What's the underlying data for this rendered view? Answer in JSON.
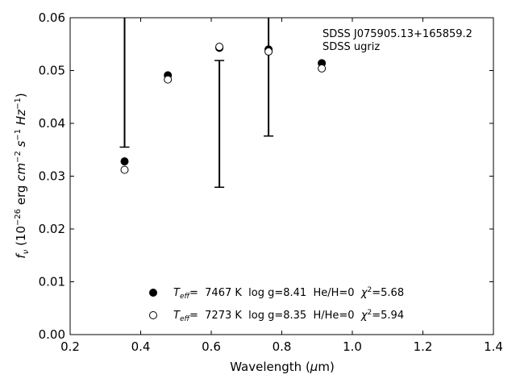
{
  "chart_data": {
    "type": "scatter",
    "xlabel": "Wavelength (μm)",
    "ylabel": "f_ν (10^-26 erg cm^-2 s^-1 Hz^-1)",
    "xlim": [
      0.2,
      1.4
    ],
    "ylim": [
      0.0,
      0.06
    ],
    "x_ticks": [
      0.2,
      0.4,
      0.6,
      0.8,
      1.0,
      1.2,
      1.4
    ],
    "x_tick_labels": [
      "0.2",
      "0.4",
      "0.6",
      "0.8",
      "1.0",
      "1.2",
      "1.4"
    ],
    "y_ticks": [
      0.0,
      0.01,
      0.02,
      0.03,
      0.04,
      0.05,
      0.06
    ],
    "y_tick_labels": [
      "0.00",
      "0.01",
      "0.02",
      "0.03",
      "0.04",
      "0.05",
      "0.06"
    ],
    "grid": false,
    "annotations": [
      "SDSS J075905.13+165859.2",
      "SDSS ugriz"
    ],
    "observed": {
      "x": [
        0.3543,
        0.477,
        0.6231,
        0.7625,
        0.9134
      ],
      "y_high": [
        0.06,
        0.06,
        0.0519,
        0.06,
        0.06
      ],
      "y_low": [
        0.0355,
        0.06,
        0.0279,
        0.0376,
        0.06
      ],
      "caps": [
        [
          "low"
        ],
        [],
        [
          "high",
          "low"
        ],
        [
          "low"
        ],
        []
      ]
    },
    "series": [
      {
        "name": "T_eff= 7467 K log g=8.41 He/H=0 χ²=5.68",
        "marker": "filled-circle",
        "x": [
          0.3543,
          0.477,
          0.6231,
          0.7625,
          0.9134
        ],
        "y": [
          0.0328,
          0.0491,
          0.0543,
          0.054,
          0.0514
        ]
      },
      {
        "name": "T_eff= 7273 K log g=8.35 H/He=0 χ²=5.94",
        "marker": "open-circle",
        "x": [
          0.3543,
          0.477,
          0.6231,
          0.7625,
          0.9134
        ],
        "y": [
          0.0312,
          0.0483,
          0.0545,
          0.0536,
          0.0504
        ]
      }
    ],
    "legend_placement": "bottom-center",
    "legend": [
      {
        "T": "T",
        "sub": "eff",
        "rest": "=  7467 K  log g=8.41  He/H=0  ",
        "chi": "χ",
        "chi_sup": "2",
        "chi_val": "=5.68"
      },
      {
        "T": "T",
        "sub": "eff",
        "rest": "=  7273 K  log g=8.35  H/He=0  ",
        "chi": "χ",
        "chi_sup": "2",
        "chi_val": "=5.94"
      }
    ],
    "xlabel_parts": {
      "pre": "Wavelength (",
      "mu": "μ",
      "post": "m)"
    },
    "ylabel_parts": {
      "f": "f",
      "f_sub": "ν",
      "open": " (10",
      "exp1": "−26",
      "erg": " erg ",
      "cm": "cm",
      "exp2": "−2",
      "s": " s",
      "exp3": "−1",
      "hz": " Hz",
      "exp4": "−1",
      "close": ")"
    }
  }
}
